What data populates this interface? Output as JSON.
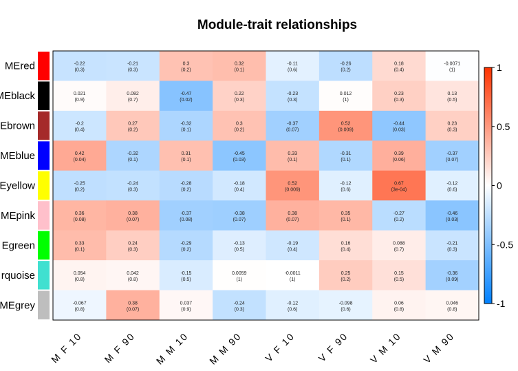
{
  "chart_data": {
    "type": "heatmap",
    "title": "Module-trait relationships",
    "rows": [
      "MEred",
      "MEblack",
      "MEbrown",
      "MEblue",
      "MEyellow",
      "MEpink",
      "MEgreen",
      "MEturquoise",
      "MEgrey"
    ],
    "row_label_text": [
      "MEred",
      "MEblack",
      "Ebrown",
      "MEblue",
      "Eyellow",
      "MEpink",
      "Egreen",
      "rquoise",
      "MEgrey"
    ],
    "row_colors": [
      "#ff0000",
      "#000000",
      "#a52a2a",
      "#0000ff",
      "#ffff00",
      "#ffc0cb",
      "#00ff00",
      "#40e0d0",
      "#bebebe"
    ],
    "columns": [
      "M F 10",
      "M F 90",
      "M M 10",
      "M M 90",
      "V F 10",
      "V F 90",
      "V M 10",
      "V M 90"
    ],
    "values": [
      [
        -0.22,
        -0.21,
        0.3,
        0.32,
        -0.11,
        -0.26,
        0.18,
        -0.0071
      ],
      [
        0.021,
        0.082,
        -0.47,
        0.22,
        -0.23,
        0.012,
        0.23,
        0.13
      ],
      [
        -0.2,
        0.27,
        -0.32,
        0.3,
        -0.37,
        0.52,
        -0.44,
        0.23
      ],
      [
        0.42,
        -0.32,
        0.31,
        -0.45,
        0.33,
        -0.31,
        0.39,
        -0.37
      ],
      [
        -0.25,
        -0.24,
        -0.28,
        -0.18,
        0.52,
        -0.12,
        0.67,
        -0.12
      ],
      [
        0.36,
        0.38,
        -0.37,
        -0.38,
        0.38,
        0.35,
        -0.27,
        -0.46
      ],
      [
        0.33,
        0.24,
        -0.29,
        -0.13,
        -0.19,
        0.16,
        0.088,
        -0.21
      ],
      [
        0.054,
        0.042,
        -0.15,
        0.0059,
        -0.0011,
        0.25,
        0.15,
        -0.36
      ],
      [
        -0.067,
        0.38,
        0.037,
        -0.24,
        -0.12,
        -0.098,
        0.06,
        0.046
      ]
    ],
    "cell_text": [
      [
        "-0.22",
        "-0.21",
        "0.3",
        "0.32",
        "-0.11",
        "-0.26",
        "0.18",
        "-0.0071"
      ],
      [
        "0.021",
        "0.082",
        "-0.47",
        "0.22",
        "-0.23",
        "0.012",
        "0.23",
        "0.13"
      ],
      [
        "-0.2",
        "0.27",
        "-0.32",
        "0.3",
        "-0.37",
        "0.52",
        "-0.44",
        "0.23"
      ],
      [
        "0.42",
        "-0.32",
        "0.31",
        "-0.45",
        "0.33",
        "-0.31",
        "0.39",
        "-0.37"
      ],
      [
        "-0.25",
        "-0.24",
        "-0.28",
        "-0.18",
        "0.52",
        "-0.12",
        "0.67",
        "-0.12"
      ],
      [
        "0.36",
        "0.38",
        "-0.37",
        "-0.38",
        "0.38",
        "0.35",
        "-0.27",
        "-0.46"
      ],
      [
        "0.33",
        "0.24",
        "-0.29",
        "-0.13",
        "-0.19",
        "0.16",
        "0.088",
        "-0.21"
      ],
      [
        "0.054",
        "0.042",
        "-0.15",
        "0.0059",
        "-0.0011",
        "0.25",
        "0.15",
        "-0.36"
      ],
      [
        "-0.067",
        "0.38",
        "0.037",
        "-0.24",
        "-0.12",
        "-0.098",
        "0.06",
        "0.046"
      ]
    ],
    "pvalues": [
      [
        "(0.3)",
        "(0.3)",
        "(0.2)",
        "(0.1)",
        "(0.6)",
        "(0.2)",
        "(0.4)",
        "(1)"
      ],
      [
        "(0.9)",
        "(0.7)",
        "(0.02)",
        "(0.3)",
        "(0.3)",
        "(1)",
        "(0.3)",
        "(0.5)"
      ],
      [
        "(0.4)",
        "(0.2)",
        "(0.1)",
        "(0.2)",
        "(0.07)",
        "(0.009)",
        "(0.03)",
        "(0.3)"
      ],
      [
        "(0.04)",
        "(0.1)",
        "(0.1)",
        "(0.03)",
        "(0.1)",
        "(0.1)",
        "(0.06)",
        "(0.07)"
      ],
      [
        "(0.2)",
        "(0.3)",
        "(0.2)",
        "(0.4)",
        "(0.009)",
        "(0.6)",
        "(3e-04)",
        "(0.6)"
      ],
      [
        "(0.08)",
        "(0.07)",
        "(0.08)",
        "(0.07)",
        "(0.07)",
        "(0.1)",
        "(0.2)",
        "(0.03)"
      ],
      [
        "(0.1)",
        "(0.3)",
        "(0.2)",
        "(0.5)",
        "(0.4)",
        "(0.4)",
        "(0.7)",
        "(0.3)"
      ],
      [
        "(0.8)",
        "(0.8)",
        "(0.5)",
        "(1)",
        "(1)",
        "(0.2)",
        "(0.5)",
        "(0.09)"
      ],
      [
        "(0.8)",
        "(0.07)",
        "(0.9)",
        "(0.3)",
        "(0.6)",
        "(0.6)",
        "(0.8)",
        "(0.8)"
      ]
    ],
    "color_scale": {
      "min": -1,
      "max": 1,
      "low_color": "#0080ff",
      "mid_color": "#ffffff",
      "high_color": "#ff3300",
      "ticks": [
        -1,
        -0.5,
        0,
        0.5,
        1
      ],
      "tick_labels": [
        "-1",
        "-0.5",
        "0",
        "0.5",
        "1"
      ]
    },
    "legend_placement": "right",
    "grid": false
  }
}
